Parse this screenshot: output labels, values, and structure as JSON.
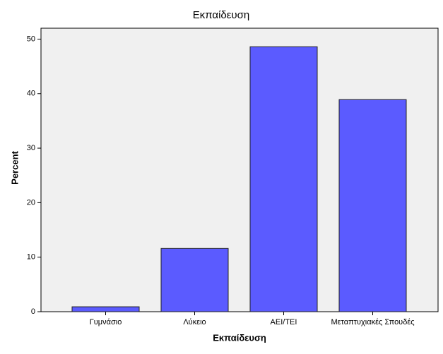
{
  "chart_data": {
    "type": "bar",
    "title": "Εκπαίδευση",
    "x_label": "Εκπαίδευση",
    "y_label": "Percent",
    "categories": [
      "Γυμνάσιο",
      "Λύκειο",
      "ΑΕΙ/ΤΕΙ",
      "Μεταπτυχιακές Σπουδές"
    ],
    "values": [
      0.9,
      11.6,
      48.6,
      38.9
    ],
    "color": "#5b5bff",
    "ylim": [
      0,
      52
    ],
    "yticks": [
      0,
      10,
      20,
      30,
      40,
      50
    ],
    "grid": false
  }
}
